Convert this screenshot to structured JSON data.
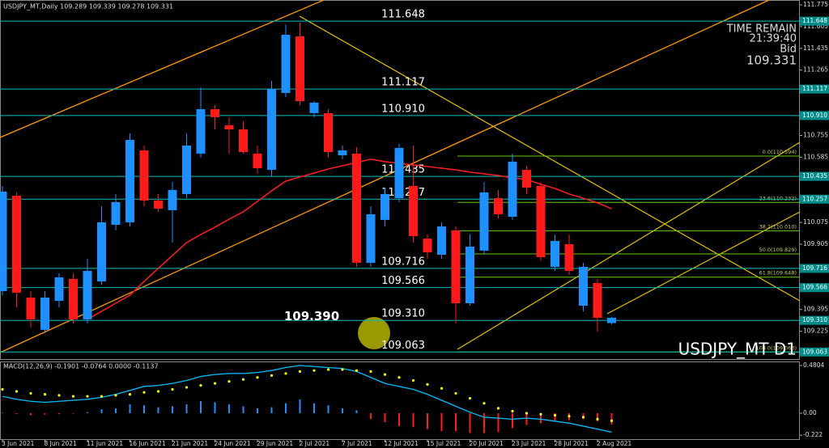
{
  "chart_data": [
    {
      "type": "candlestick",
      "title": "USDJPY_MT,Daily  109.289 109.339 109.278 109.331",
      "watermark": "USDJPY_MT D1",
      "info": {
        "time_label": "TIME REMAIN",
        "time": "21:39:40",
        "bid_label": "Bid",
        "bid": 109.331
      },
      "categories": [
        "3 Jun 2021",
        null,
        null,
        "8 Jun 2021",
        null,
        null,
        "11 Jun 2021",
        null,
        null,
        "16 Jun 2021",
        null,
        null,
        "21 Jun 2021",
        null,
        null,
        "24 Jun 2021",
        null,
        null,
        "29 Jun 2021",
        null,
        null,
        "2 Jul 2021",
        null,
        null,
        "7 Jul 2021",
        null,
        null,
        "12 Jul 2021",
        null,
        null,
        "15 Jul 2021",
        null,
        null,
        "20 Jul 2021",
        null,
        null,
        "23 Jul 2021",
        null,
        null,
        "28 Jul 2021",
        null,
        null,
        "2 Aug 2021",
        null
      ],
      "open": [
        109.539,
        110.284,
        109.488,
        109.236,
        109.463,
        109.634,
        109.318,
        109.615,
        110.057,
        110.076,
        110.638,
        110.246,
        110.171,
        110.297,
        110.613,
        110.96,
        110.834,
        110.802,
        110.613,
        110.486,
        111.087,
        111.529,
        110.929,
        110.929,
        110.6,
        110.613,
        109.76,
        110.095,
        110.265,
        110.36,
        109.949,
        109.823,
        110.013,
        109.444,
        109.855,
        110.265,
        110.12,
        110.486,
        110.36,
        109.728,
        109.905,
        109.425,
        109.602,
        109.289
      ],
      "high": [
        110.36,
        110.31,
        109.539,
        109.539,
        109.678,
        109.678,
        109.792,
        110.202,
        110.297,
        110.771,
        110.676,
        110.297,
        110.392,
        110.771,
        111.131,
        110.992,
        110.897,
        110.865,
        110.676,
        111.181,
        111.623,
        111.636,
        111.023,
        110.96,
        110.676,
        110.663,
        110.202,
        110.347,
        110.689,
        110.676,
        109.981,
        110.076,
        110.044,
        109.981,
        110.392,
        110.329,
        110.613,
        110.518,
        110.392,
        109.981,
        109.981,
        109.76,
        109.634,
        109.339
      ],
      "low": [
        109.507,
        109.413,
        109.255,
        109.21,
        109.413,
        109.286,
        109.286,
        109.589,
        110.013,
        110.044,
        110.202,
        110.158,
        109.918,
        110.265,
        110.581,
        110.802,
        110.613,
        110.613,
        110.455,
        110.436,
        111.055,
        110.992,
        110.897,
        110.581,
        110.569,
        109.728,
        109.728,
        110.044,
        110.234,
        109.918,
        109.792,
        109.792,
        109.286,
        109.425,
        109.823,
        110.107,
        110.095,
        110.297,
        109.779,
        109.697,
        109.665,
        109.381,
        109.223,
        109.278
      ],
      "close": [
        110.316,
        109.526,
        109.318,
        109.488,
        109.646,
        109.318,
        109.697,
        110.076,
        110.234,
        110.72,
        110.246,
        110.183,
        110.329,
        110.676,
        110.96,
        110.897,
        110.802,
        110.625,
        110.499,
        111.118,
        111.541,
        111.023,
        111.011,
        110.625,
        110.638,
        109.76,
        110.139,
        110.297,
        110.657,
        109.968,
        109.842,
        110.044,
        109.444,
        109.886,
        110.31,
        110.139,
        110.55,
        110.347,
        109.804,
        109.931,
        109.697,
        109.728,
        109.33,
        109.331
      ],
      "up_color": "#1e90ff",
      "down_color": "#ff1a1a",
      "ma": {
        "color": "#ff2020",
        "values": [
          null,
          null,
          null,
          null,
          null,
          null,
          109.318,
          109.381,
          109.444,
          109.507,
          109.615,
          109.716,
          109.817,
          109.918,
          109.981,
          110.038,
          110.101,
          110.158,
          110.24,
          110.322,
          110.398,
          110.43,
          110.461,
          110.493,
          110.518,
          110.543,
          110.569,
          110.55,
          110.537,
          110.524,
          110.512,
          110.499,
          110.486,
          110.468,
          110.455,
          110.442,
          110.423,
          110.411,
          110.373,
          110.341,
          110.297,
          110.265,
          110.228,
          110.183
        ]
      },
      "ylim": [
        109.008,
        111.813
      ],
      "yticks": [
        111.775,
        111.605,
        111.435,
        111.265,
        110.755,
        110.585,
        110.075,
        109.905,
        109.395,
        109.225
      ],
      "levels_color": "#00c0c0",
      "levels": [
        111.648,
        111.117,
        {
          "value": 110.91,
          "label": "110.910"
        },
        110.435,
        110.257,
        109.716,
        109.566,
        {
          "value": 109.31,
          "label": "109.310"
        },
        109.063
      ],
      "fib_color": "#66cc00",
      "fib": [
        {
          "value": 110.594,
          "label": "0.0(110.594)"
        },
        {
          "value": 110.232,
          "label": "23.6(110.232)"
        },
        {
          "value": 110.01,
          "label": "38.2(110.010)"
        },
        {
          "value": 109.829,
          "label": "50.0(109.829)"
        },
        {
          "value": 109.648,
          "label": "61.8(109.648)"
        },
        {
          "value": 109.063,
          "label": "100.0(109.063)"
        }
      ],
      "annotations": [
        {
          "value": 109.39,
          "label": "109.390"
        }
      ]
    },
    {
      "type": "macd",
      "title": "MACD(12,26,9) -0.1901 -0.0764 0.0000 -0.1137",
      "histogram": {
        "up_color": "#1e90ff",
        "down_color": "#ff1a1a",
        "values": [
          0.005,
          -0.01,
          -0.02,
          -0.015,
          -0.01,
          -0.005,
          0.01,
          0.04,
          0.05,
          0.09,
          0.08,
          0.06,
          0.07,
          0.09,
          0.12,
          0.11,
          0.09,
          0.07,
          0.05,
          0.06,
          0.1,
          0.14,
          0.1,
          0.08,
          0.05,
          0.03,
          -0.06,
          -0.09,
          -0.13,
          -0.14,
          -0.16,
          -0.18,
          -0.18,
          -0.2,
          -0.2,
          -0.19,
          -0.15,
          -0.12,
          -0.1,
          -0.08,
          -0.07,
          -0.06,
          -0.08,
          -0.114
        ]
      },
      "macd_line": {
        "color": "#00bfff",
        "values": [
          0.17,
          0.14,
          0.12,
          0.11,
          0.12,
          0.13,
          0.14,
          0.16,
          0.19,
          0.23,
          0.27,
          0.28,
          0.3,
          0.33,
          0.37,
          0.39,
          0.4,
          0.4,
          0.41,
          0.43,
          0.46,
          0.48,
          0.47,
          0.46,
          0.45,
          0.42,
          0.36,
          0.3,
          0.27,
          0.24,
          0.19,
          0.13,
          0.07,
          0.01,
          -0.04,
          -0.05,
          -0.06,
          -0.05,
          -0.06,
          -0.08,
          -0.1,
          -0.13,
          -0.16,
          -0.19
        ]
      },
      "signal": {
        "color": "#ffff00",
        "values": [
          0.24,
          0.22,
          0.2,
          0.19,
          0.18,
          0.17,
          0.17,
          0.17,
          0.18,
          0.19,
          0.21,
          0.22,
          0.24,
          0.26,
          0.28,
          0.3,
          0.32,
          0.34,
          0.36,
          0.38,
          0.4,
          0.42,
          0.43,
          0.44,
          0.44,
          0.43,
          0.42,
          0.39,
          0.36,
          0.33,
          0.29,
          0.25,
          0.2,
          0.15,
          0.1,
          0.05,
          0.02,
          0.0,
          -0.01,
          -0.02,
          -0.03,
          -0.04,
          -0.06,
          -0.076
        ]
      },
      "ylim": [
        -0.277,
        0.521
      ],
      "yticks": [
        0.4804,
        {
          "value": 0,
          "label": "0.00"
        },
        -0.222
      ]
    }
  ]
}
